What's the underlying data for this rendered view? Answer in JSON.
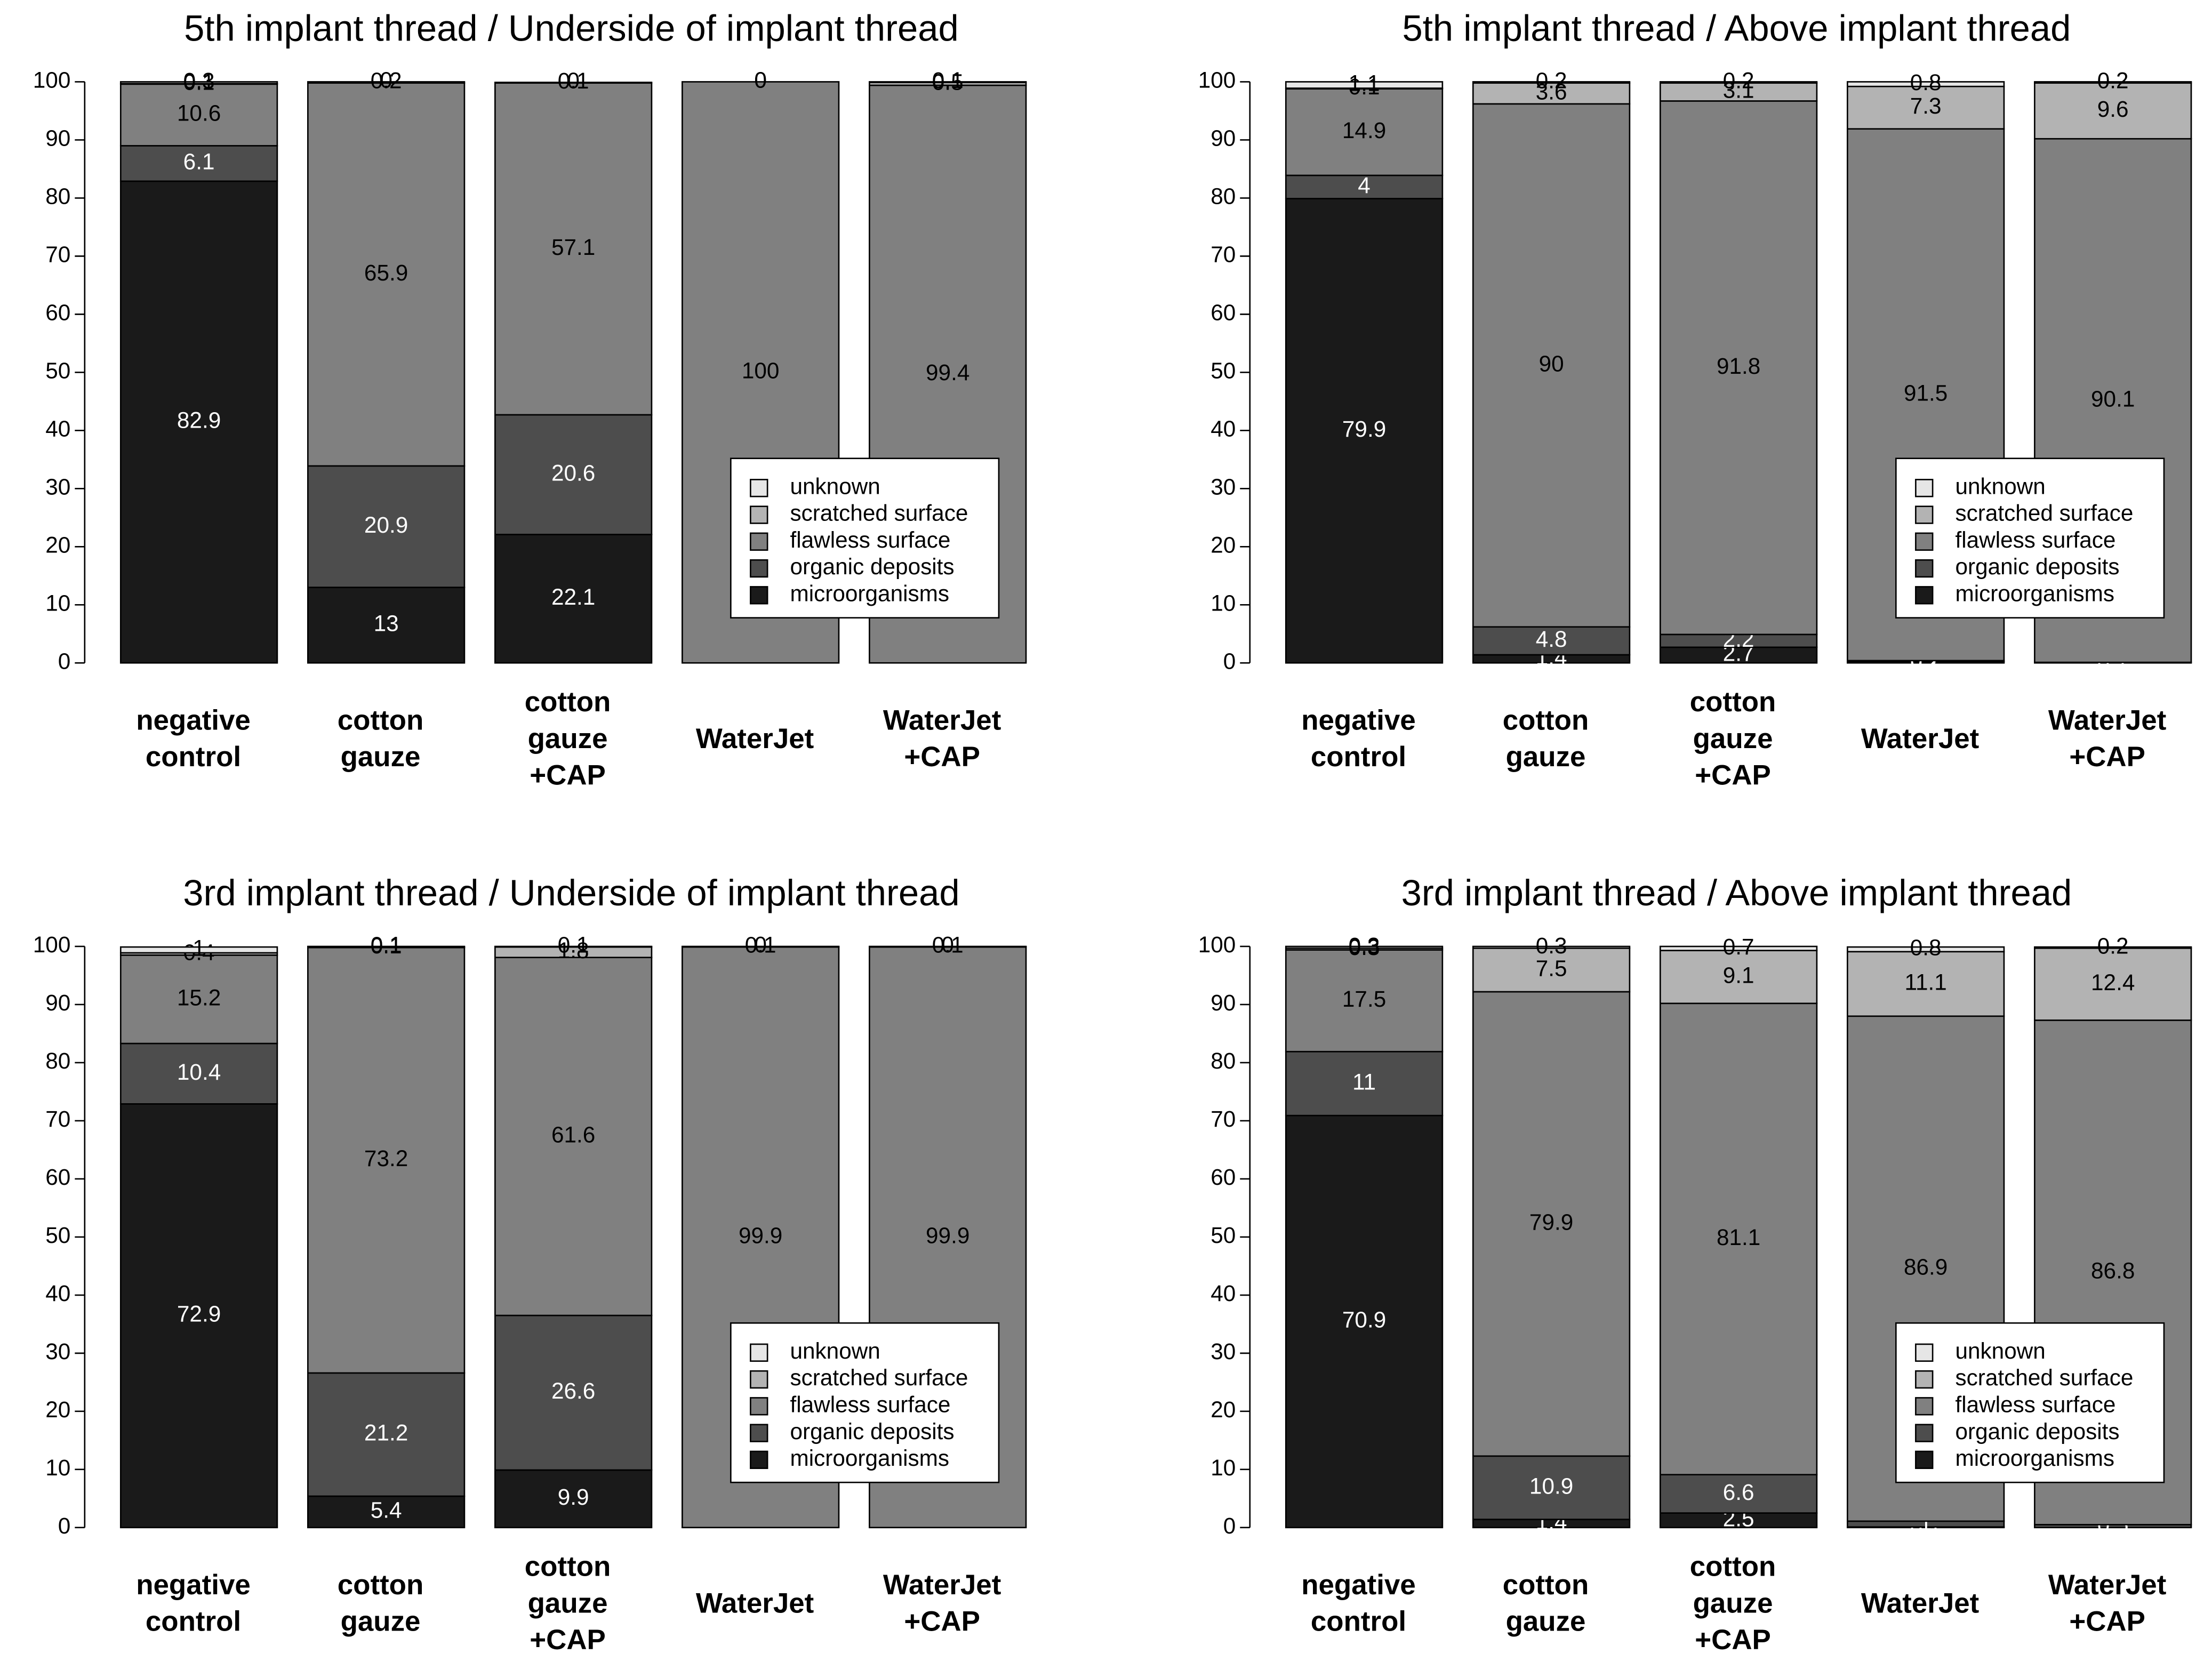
{
  "chart_data": [
    {
      "type": "stacked_bar",
      "title": "5th implant thread / Underside of implant thread",
      "categories": [
        "negative control",
        "cotton gauze",
        "cotton gauze +CAP",
        "WaterJet",
        "WaterJet +CAP"
      ],
      "series": [
        {
          "name": "microorganisms",
          "color": "#1a1a1a",
          "values": [
            82.9,
            13,
            22.1,
            0,
            0
          ]
        },
        {
          "name": "organic deposits",
          "color": "#4d4d4d",
          "values": [
            6.1,
            20.9,
            20.6,
            0,
            0
          ]
        },
        {
          "name": "flawless surface",
          "color": "#808080",
          "values": [
            10.6,
            65.9,
            57.1,
            100,
            99.4
          ]
        },
        {
          "name": "scratched surface",
          "color": "#b3b3b3",
          "values": [
            0.1,
            0.2,
            0.1,
            0,
            0.5
          ]
        },
        {
          "name": "unknown",
          "color": "#e6e6e6",
          "values": [
            0.3,
            0,
            0,
            0,
            0.1
          ]
        }
      ],
      "ylim": [
        0,
        100
      ],
      "yticks": [
        0,
        10,
        20,
        30,
        40,
        50,
        60,
        70,
        80,
        90,
        100
      ],
      "legend": "right"
    },
    {
      "type": "stacked_bar",
      "title": "5th implant thread / Above implant thread",
      "categories": [
        "negative control",
        "cotton gauze",
        "cotton gauze +CAP",
        "WaterJet",
        "WaterJet +CAP"
      ],
      "series": [
        {
          "name": "microorganisms",
          "color": "#1a1a1a",
          "values": [
            79.9,
            1.4,
            2.7,
            0.2,
            0
          ]
        },
        {
          "name": "organic deposits",
          "color": "#4d4d4d",
          "values": [
            4,
            4.8,
            2.2,
            0.2,
            0.1
          ]
        },
        {
          "name": "flawless surface",
          "color": "#808080",
          "values": [
            14.9,
            90,
            91.8,
            91.5,
            90.1
          ]
        },
        {
          "name": "scratched surface",
          "color": "#b3b3b3",
          "values": [
            0.1,
            3.6,
            3.1,
            7.3,
            9.6
          ]
        },
        {
          "name": "unknown",
          "color": "#e6e6e6",
          "values": [
            1.1,
            0.2,
            0.2,
            0.8,
            0.2
          ]
        }
      ],
      "ylim": [
        0,
        100
      ],
      "yticks": [
        0,
        10,
        20,
        30,
        40,
        50,
        60,
        70,
        80,
        90,
        100
      ],
      "legend": "right"
    },
    {
      "type": "stacked_bar",
      "title": "3rd implant thread / Underside of implant thread",
      "categories": [
        "negative control",
        "cotton gauze",
        "cotton gauze +CAP",
        "WaterJet",
        "WaterJet +CAP"
      ],
      "series": [
        {
          "name": "microorganisms",
          "color": "#1a1a1a",
          "values": [
            72.9,
            5.4,
            9.9,
            0,
            0
          ]
        },
        {
          "name": "organic deposits",
          "color": "#4d4d4d",
          "values": [
            10.4,
            21.2,
            26.6,
            0,
            0
          ]
        },
        {
          "name": "flawless surface",
          "color": "#808080",
          "values": [
            15.2,
            73.2,
            61.6,
            99.9,
            99.9
          ]
        },
        {
          "name": "scratched surface",
          "color": "#b3b3b3",
          "values": [
            0.4,
            0.1,
            1.8,
            0.1,
            0.1
          ]
        },
        {
          "name": "unknown",
          "color": "#e6e6e6",
          "values": [
            1,
            0.1,
            0.1,
            0,
            0
          ]
        }
      ],
      "ylim": [
        0,
        100
      ],
      "yticks": [
        0,
        10,
        20,
        30,
        40,
        50,
        60,
        70,
        80,
        90,
        100
      ],
      "legend": "right"
    },
    {
      "type": "stacked_bar",
      "title": "3rd implant thread / Above implant thread",
      "categories": [
        "negative control",
        "cotton gauze",
        "cotton gauze +CAP",
        "WaterJet",
        "WaterJet +CAP"
      ],
      "series": [
        {
          "name": "microorganisms",
          "color": "#1a1a1a",
          "values": [
            70.9,
            1.4,
            2.5,
            0.1,
            0
          ]
        },
        {
          "name": "organic deposits",
          "color": "#4d4d4d",
          "values": [
            11,
            10.9,
            6.6,
            1,
            0.5
          ]
        },
        {
          "name": "flawless surface",
          "color": "#808080",
          "values": [
            17.5,
            79.9,
            81.1,
            86.9,
            86.8
          ]
        },
        {
          "name": "scratched surface",
          "color": "#b3b3b3",
          "values": [
            0.3,
            7.5,
            9.1,
            11.1,
            12.4
          ]
        },
        {
          "name": "unknown",
          "color": "#e6e6e6",
          "values": [
            0.3,
            0.3,
            0.7,
            0.8,
            0.2
          ]
        }
      ],
      "ylim": [
        0,
        100
      ],
      "yticks": [
        0,
        10,
        20,
        30,
        40,
        50,
        60,
        70,
        80,
        90,
        100
      ],
      "legend": "right"
    }
  ]
}
